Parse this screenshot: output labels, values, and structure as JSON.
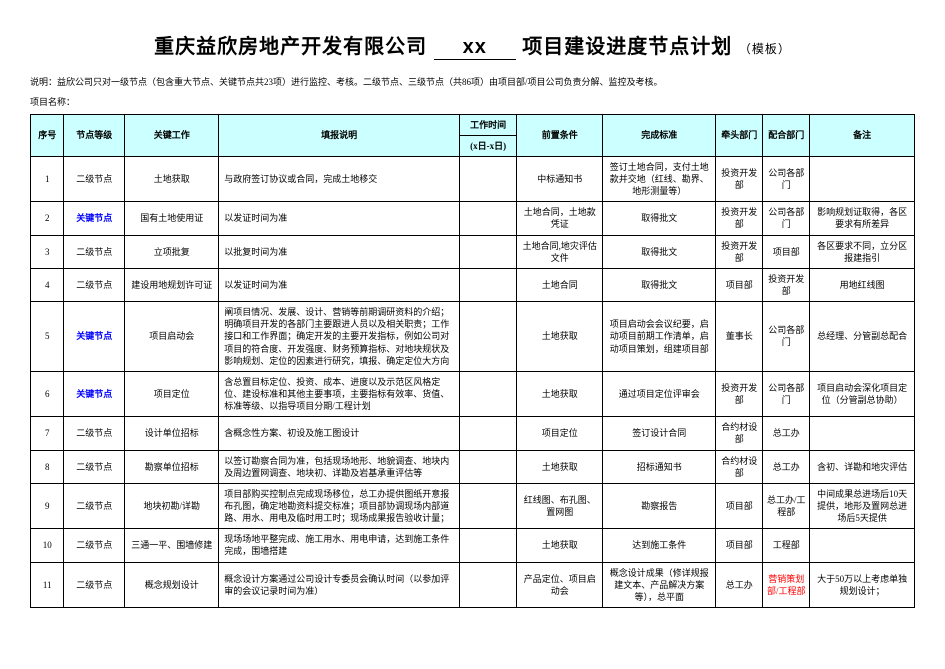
{
  "title": {
    "company": "重庆益欣房地产开发有限公司",
    "project_fill": "xx",
    "suffix": "项目建设进度节点计划",
    "template": "（模板）"
  },
  "note": "说明：益欣公司只对一级节点（包含重大节点、关键节点共23项）进行监控、考核。二级节点、三级节点（共86项）由项目部/项目公司负责分解、监控及考核。",
  "project_name_label": "项目名称：",
  "headers": {
    "seq": "序号",
    "level": "节点等级",
    "work": "关键工作",
    "desc": "填报说明",
    "time": "工作时间",
    "time_sub": "(x日-x日)",
    "pre": "前置条件",
    "std": "完成标准",
    "lead": "牵头部门",
    "coop": "配合部门",
    "remark": "备注"
  },
  "rows": [
    {
      "seq": "1",
      "level": "二级节点",
      "level_key": false,
      "work": "土地获取",
      "desc": "与政府签订协议或合同，完成土地移交",
      "pre": "中标通知书",
      "std": "签订土地合同，支付土地款并交地（红线、勘界、地形测量等）",
      "lead": "投资开发部",
      "coop": "公司各部门",
      "remark": ""
    },
    {
      "seq": "2",
      "level": "关键节点",
      "level_key": true,
      "work": "国有土地使用证",
      "desc": "以发证时间为准",
      "pre": "土地合同，土地款凭证",
      "std": "取得批文",
      "lead": "投资开发部",
      "coop": "公司各部门",
      "remark": "影响规划证取得，各区要求有所差异"
    },
    {
      "seq": "3",
      "level": "二级节点",
      "level_key": false,
      "work": "立项批复",
      "desc": "以批复时间为准",
      "pre": "土地合同,地灾评估文件",
      "std": "取得批文",
      "lead": "投资开发部",
      "coop": "项目部",
      "remark": "各区要求不同，立分区报建指引"
    },
    {
      "seq": "4",
      "level": "二级节点",
      "level_key": false,
      "work": "建设用地规划许可证",
      "desc": "以发证时间为准",
      "pre": "土地合同",
      "std": "取得批文",
      "lead": "项目部",
      "coop": "投资开发部",
      "remark": "用地红线图"
    },
    {
      "seq": "5",
      "level": "关键节点",
      "level_key": true,
      "work": "项目启动会",
      "desc": "阐项目情况、发展、设计、营销等前期调研资料的介绍；明确项目开发的各部门主要跟进人员以及相关职责；工作接口和工作界面；确定开发的主要开发指标，例如公司对项目的符合度、开发强度、财务预算指标、对地块规状及影响规划、定位的因素进行研究，填报、确定定位大方向",
      "pre": "土地获取",
      "std": "项目启动会会议纪要，启动项目前期工作清单，启动项目策划，组建项目部",
      "lead": "董事长",
      "coop": "公司各部门",
      "remark": "总经理、分管副总配合"
    },
    {
      "seq": "6",
      "level": "关键节点",
      "level_key": true,
      "work": "项目定位",
      "desc": "含总置目标定位、投资、成本、进度以及示范区风格定位、建设标准和其他主要事项，主要指标有效率、货值、标准等级、以指导项目分期/工程计划",
      "pre": "土地获取",
      "std": "通过项目定位评审会",
      "lead": "投资开发部",
      "coop": "公司各部门",
      "remark": "项目启动会深化项目定位（分管副总协助）"
    },
    {
      "seq": "7",
      "level": "二级节点",
      "level_key": false,
      "work": "设计单位招标",
      "desc": "含概念性方案、初设及施工图设计",
      "pre": "项目定位",
      "std": "签订设计合同",
      "lead": "合约材设部",
      "coop": "总工办",
      "remark": ""
    },
    {
      "seq": "8",
      "level": "二级节点",
      "level_key": false,
      "work": "勘察单位招标",
      "desc": "以签订勘察合同为准，包括现场地形、地貌调查、地块内及周边置网调查、地块初、详勘及岩基承重评估等",
      "pre": "土地获取",
      "std": "招标通知书",
      "lead": "合约材设部",
      "coop": "总工办",
      "remark": "含初、详勘和地灾评估"
    },
    {
      "seq": "9",
      "level": "二级节点",
      "level_key": false,
      "work": "地块初勘/详勘",
      "desc": "项目部购买控制点完成现场移位，总工办提供图纸开意报布孔图，确定地勘资料提交标准；项目部协调现场内部道路、用水、用电及临时用工时；现场成果报告验收计量；",
      "pre": "红线图、布孔图、置网图",
      "std": "勘察报告",
      "lead": "项目部",
      "coop": "总工办/工程部",
      "remark": "中间成果总进场后10天提供，地形及置网总进场后5天提供"
    },
    {
      "seq": "10",
      "level": "二级节点",
      "level_key": false,
      "work": "三通一平、围墙修建",
      "desc": "现场场地平整完成、施工用水、用电申请，达到施工条件完成，围墙搭建",
      "pre": "土地获取",
      "std": "达到施工条件",
      "lead": "项目部",
      "coop": "工程部",
      "remark": ""
    },
    {
      "seq": "11",
      "level": "二级节点",
      "level_key": false,
      "work": "概念规划设计",
      "desc": "概念设计方案通过公司设计专委员会确认时间（以参加评审的会议记录时间为准）",
      "pre": "产品定位、项目启动会",
      "std": "概念设计成果（修详规报建文本、产品解决方案等），总平面",
      "lead": "总工办",
      "coop": "营销策划部/工程部",
      "coop_red": true,
      "remark": "大于50万以上考虑单独规划设计；"
    }
  ]
}
